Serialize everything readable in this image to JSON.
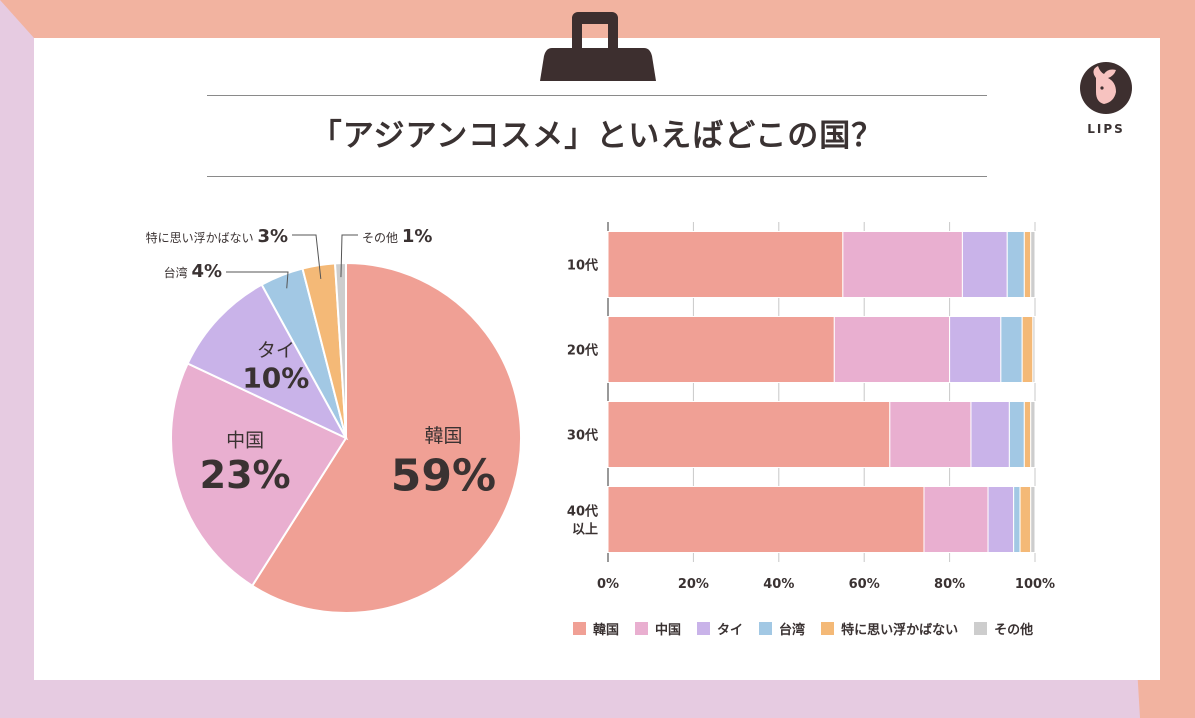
{
  "title": "「アジアンコスメ」といえばどこの国？",
  "logo": {
    "name": "LIPS"
  },
  "colors": {
    "border_peach": "#f2b3a0",
    "border_lavender": "#e6cbe1",
    "clip": "#3d2f2f",
    "text": "#3a3232",
    "series": [
      "#f0a095",
      "#e9afd0",
      "#c9b3e9",
      "#a2c8e4",
      "#f4b977",
      "#cdcdcd"
    ]
  },
  "chart_data": [
    {
      "type": "pie",
      "slices": [
        {
          "label": "韓国",
          "value": 59,
          "value_label": "59%"
        },
        {
          "label": "中国",
          "value": 23,
          "value_label": "23%"
        },
        {
          "label": "タイ",
          "value": 10,
          "value_label": "10%"
        },
        {
          "label": "台湾",
          "value": 4,
          "value_label": "4%"
        },
        {
          "label": "特に思い浮かばない",
          "value": 3,
          "value_label": "3%"
        },
        {
          "label": "その他",
          "value": 1,
          "value_label": "1%"
        }
      ]
    },
    {
      "type": "bar",
      "orientation": "horizontal",
      "stacked": true,
      "categories": [
        "10代",
        "20代",
        "30代",
        "40代\n以上"
      ],
      "category_lines": [
        [
          "10代"
        ],
        [
          "20代"
        ],
        [
          "30代"
        ],
        [
          "40代",
          "以上"
        ]
      ],
      "series": [
        {
          "name": "韓国",
          "values": [
            55,
            53,
            66,
            74
          ]
        },
        {
          "name": "中国",
          "values": [
            28,
            27,
            19,
            15
          ]
        },
        {
          "name": "タイ",
          "values": [
            10.5,
            12,
            9,
            6
          ]
        },
        {
          "name": "台湾",
          "values": [
            4,
            5,
            3.5,
            1.5
          ]
        },
        {
          "name": "特に思い浮かばない",
          "values": [
            1.5,
            2.5,
            1.5,
            2.5
          ]
        },
        {
          "name": "その他",
          "values": [
            1,
            0.5,
            1,
            1
          ]
        }
      ],
      "xlim": [
        0,
        100
      ],
      "xticks": [
        "0%",
        "20%",
        "40%",
        "60%",
        "80%",
        "100%"
      ],
      "grid": true,
      "legend_position": "bottom"
    }
  ]
}
